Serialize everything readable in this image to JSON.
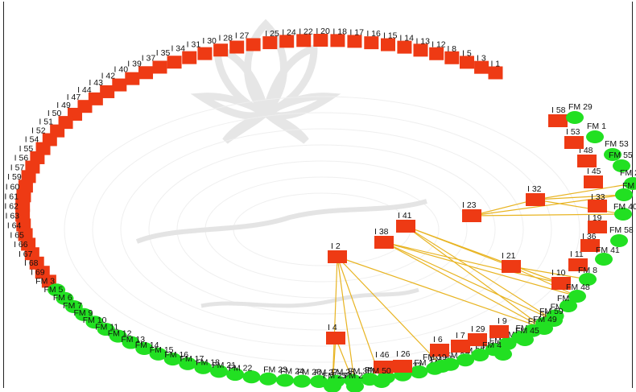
{
  "colors": {
    "issue_node": "#ee3a14",
    "fm_node": "#22e022",
    "edge": "#e8b422",
    "watermark": "#cfcfcf",
    "background": "#ffffff"
  },
  "ring_labels": [
    "I 1",
    "I 3",
    "I 5",
    "I 8",
    "I 12",
    "I 13",
    "I 14",
    "I 15",
    "I 16",
    "I 17",
    "I 18",
    "I 20",
    "I 22",
    "I 24",
    "I 25",
    "I 27",
    "I 28",
    "I 30",
    "I 31",
    "I 34",
    "I 35",
    "I 37",
    "I 39",
    "I 40",
    "I 42",
    "I 43",
    "I 44",
    "I 47",
    "I 49",
    "I 50",
    "I 51",
    "I 52",
    "I 54",
    "I 55",
    "I 56",
    "I 57",
    "I 59",
    "I 60",
    "I 61",
    "I 62",
    "I 63",
    "I 64",
    "I 65",
    "I 66",
    "I 67",
    "I 68",
    "I 69",
    "FM 3",
    "FM 5",
    "FM 6",
    "FM 7",
    "FM 9",
    "FM 10",
    "FM 11",
    "FM 12",
    "FM 13",
    "FM 14",
    "FM 15",
    "FM 16",
    "FM 17",
    "FM 18",
    "FM 21",
    "FM 22",
    "FM 23",
    "FM 24",
    "FM 26",
    "FM 27",
    "FM 28",
    "FM 30",
    "FM 31",
    "FM 32",
    "FM 33",
    "FM 34",
    "FM 35",
    "FM 37",
    "FM 38",
    "FM 39",
    "FM 42",
    "FM 47",
    "FM 52",
    "FM 54",
    "FM 56",
    "FM 57"
  ],
  "ring_issue_count": 47,
  "linked_nodes": [
    {
      "id": "I 23",
      "type": "issue"
    },
    {
      "id": "I 32",
      "type": "issue"
    },
    {
      "id": "I 41",
      "type": "issue"
    },
    {
      "id": "I 38",
      "type": "issue"
    },
    {
      "id": "I 2",
      "type": "issue"
    },
    {
      "id": "I 21",
      "type": "issue"
    },
    {
      "id": "I 4",
      "type": "issue"
    },
    {
      "id": "I 46",
      "type": "issue"
    },
    {
      "id": "I 26",
      "type": "issue"
    },
    {
      "id": "I 6",
      "type": "issue"
    },
    {
      "id": "I 7",
      "type": "issue"
    },
    {
      "id": "I 29",
      "type": "issue"
    },
    {
      "id": "I 9",
      "type": "issue"
    },
    {
      "id": "I 10",
      "type": "issue"
    },
    {
      "id": "I 11",
      "type": "issue"
    },
    {
      "id": "I 36",
      "type": "issue"
    },
    {
      "id": "I 19",
      "type": "issue"
    },
    {
      "id": "I 33",
      "type": "issue"
    },
    {
      "id": "I 45",
      "type": "issue"
    },
    {
      "id": "I 48",
      "type": "issue"
    },
    {
      "id": "I 53",
      "type": "issue"
    },
    {
      "id": "I 58",
      "type": "issue"
    },
    {
      "id": "FM 29",
      "type": "fm"
    },
    {
      "id": "FM 1",
      "type": "fm"
    },
    {
      "id": "FM 53",
      "type": "fm"
    },
    {
      "id": "FM 55",
      "type": "fm"
    },
    {
      "id": "FM 20",
      "type": "fm"
    },
    {
      "id": "FM 44",
      "type": "fm"
    },
    {
      "id": "FM 40",
      "type": "fm"
    },
    {
      "id": "FM 58",
      "type": "fm"
    },
    {
      "id": "FM 41",
      "type": "fm"
    },
    {
      "id": "FM 8",
      "type": "fm"
    },
    {
      "id": "FM 48",
      "type": "fm"
    },
    {
      "id": "FM",
      "type": "fm"
    },
    {
      "id": "FM 59",
      "type": "fm"
    },
    {
      "id": "FM 49",
      "type": "fm"
    },
    {
      "id": "FM 45",
      "type": "fm"
    },
    {
      "id": "FM 4",
      "type": "fm"
    },
    {
      "id": "FM 19",
      "type": "fm"
    },
    {
      "id": "FM 50",
      "type": "fm"
    },
    {
      "id": "FM 25",
      "type": "fm"
    },
    {
      "id": "FM 2",
      "type": "fm"
    }
  ],
  "edges": [
    [
      "I 23",
      "I 32"
    ],
    [
      "I 32",
      "FM 20"
    ],
    [
      "I 32",
      "FM 44"
    ],
    [
      "I 32",
      "FM 40"
    ],
    [
      "I 23",
      "FM 40"
    ],
    [
      "I 23",
      "FM 44"
    ],
    [
      "I 41",
      "I 21"
    ],
    [
      "I 41",
      "FM 59"
    ],
    [
      "I 41",
      "FM 49"
    ],
    [
      "I 41",
      "I 10"
    ],
    [
      "I 38",
      "FM 59"
    ],
    [
      "I 38",
      "FM 49"
    ],
    [
      "I 38",
      "I 10"
    ],
    [
      "I 38",
      "FM 48"
    ],
    [
      "I 21",
      "FM 48"
    ],
    [
      "I 21",
      "FM 8"
    ],
    [
      "I 2",
      "FM 50"
    ],
    [
      "I 2",
      "FM 25"
    ],
    [
      "I 2",
      "FM 2"
    ],
    [
      "I 2",
      "FM 19"
    ],
    [
      "I 2",
      "FM 49"
    ],
    [
      "I 4",
      "FM 25"
    ],
    [
      "I 4",
      "FM 2"
    ]
  ]
}
